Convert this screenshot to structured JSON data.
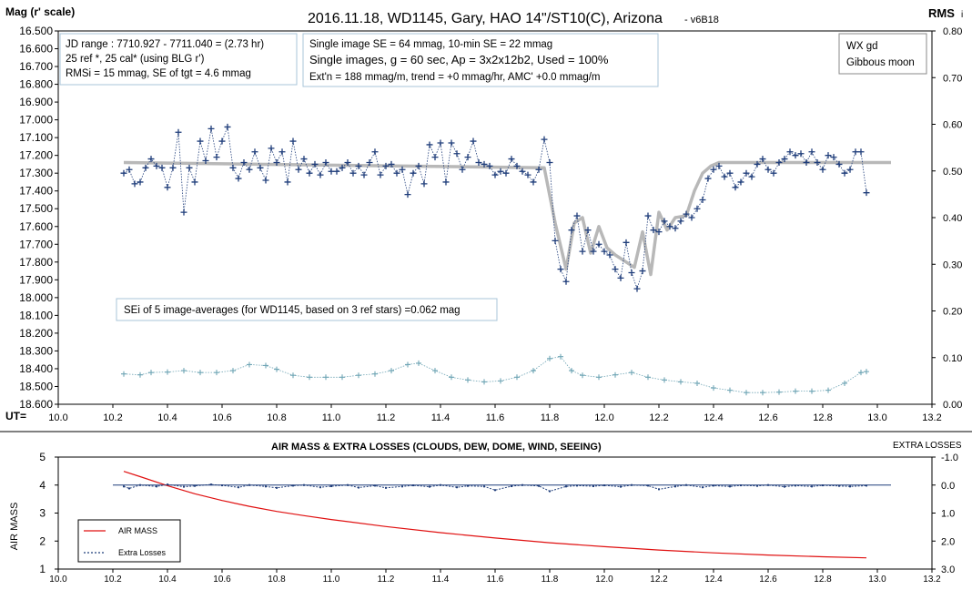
{
  "title": "2016.11.18, WD1145, Gary, HAO 14\"/ST10(C), Arizona",
  "version": " - v6B18",
  "top_chart": {
    "ylabel_left": "Mag (r' scale)",
    "ylabel_right_main": "RMS",
    "ylabel_right_sub": "i",
    "xlabel": "UT=",
    "x_ticks": [
      "10.0",
      "10.2",
      "10.4",
      "10.6",
      "10.8",
      "11.0",
      "11.2",
      "11.4",
      "11.6",
      "11.8",
      "12.0",
      "12.2",
      "12.4",
      "12.6",
      "12.8",
      "13.0",
      "13.2"
    ],
    "y_ticks": [
      "16.500",
      "16.600",
      "16.700",
      "16.800",
      "16.900",
      "17.000",
      "17.100",
      "17.200",
      "17.300",
      "17.400",
      "17.500",
      "17.600",
      "17.700",
      "17.800",
      "17.900",
      "18.000",
      "18.100",
      "18.200",
      "18.300",
      "18.400",
      "18.500",
      "18.600"
    ],
    "y2_ticks": [
      "0.80",
      "0.70",
      "0.60",
      "0.50",
      "0.40",
      "0.30",
      "0.20",
      "0.10",
      "0.00"
    ],
    "info_box_1": [
      "JD range  : 7710.927 - 7711.040  = (2.73 hr)",
      "25 ref *, 25 cal* (using BLG r')",
      "RMSi = 15 mmag, SE of tgt = 4.6 mmag"
    ],
    "info_box_2": [
      "Single image SE = 64 mmag, 10-min SE = 22 mmag",
      "Single images, g = 60 sec, Ap = 3x2x12b2, Used = 100%",
      "Ext'n = 188 mmag/m, trend = +0 mmag/hr, AMC' +0.0 mmag/m"
    ],
    "info_box_3": [
      "WX gd",
      "Gibbous moon"
    ],
    "sei_box": "SEi of 5 image-averages (for WD1145, based on 3 ref stars) =0.062 mag"
  },
  "bottom_chart": {
    "title": "AIR MASS & EXTRA LOSSES (CLOUDS, DEW, DOME, WIND, SEEING)",
    "ylabel_left": "AIR MASS",
    "ylabel_right": "EXTRA LOSSES",
    "x_ticks": [
      "10.0",
      "10.2",
      "10.4",
      "10.6",
      "10.8",
      "11.0",
      "11.2",
      "11.4",
      "11.6",
      "11.8",
      "12.0",
      "12.2",
      "12.4",
      "12.6",
      "12.8",
      "13.0",
      "13.2"
    ],
    "y_ticks": [
      "5",
      "4",
      "3",
      "2",
      "1"
    ],
    "y2_ticks": [
      "-1.0",
      "0.0",
      "1.0",
      "2.0",
      "3.0"
    ],
    "legend": [
      "AIR MASS",
      "Extra Losses"
    ]
  },
  "chart_data": [
    {
      "type": "scatter",
      "title": "2016.11.18, WD1145, Gary, HAO 14\"/ST10(C), Arizona",
      "xlabel": "UT=",
      "ylabel": "Mag (r' scale)",
      "xlim": [
        10.0,
        13.2
      ],
      "ylim": [
        16.5,
        18.6
      ],
      "y_inverted": true,
      "y2lim": [
        0.0,
        0.8
      ],
      "y2label": "RMS",
      "grid": false,
      "colors": {
        "target": "#1f3d7a",
        "model": "#b8b8b8",
        "rms": "#6fa5b5"
      },
      "series": [
        {
          "name": "",
          "style": "plus-dotted",
          "x": [
            10.24,
            10.26,
            10.28,
            10.3,
            10.32,
            10.34,
            10.36,
            10.38,
            10.4,
            10.42,
            10.44,
            10.46,
            10.48,
            10.5,
            10.52,
            10.54,
            10.56,
            10.58,
            10.6,
            10.62,
            10.64,
            10.66,
            10.68,
            10.7,
            10.72,
            10.74,
            10.76,
            10.78,
            10.8,
            10.82,
            10.84,
            10.86,
            10.88,
            10.9,
            10.92,
            10.94,
            10.96,
            10.98,
            11.0,
            11.02,
            11.04,
            11.06,
            11.08,
            11.1,
            11.12,
            11.14,
            11.16,
            11.18,
            11.2,
            11.22,
            11.24,
            11.26,
            11.28,
            11.3,
            11.32,
            11.34,
            11.36,
            11.38,
            11.4,
            11.42,
            11.44,
            11.46,
            11.48,
            11.5,
            11.52,
            11.54,
            11.56,
            11.58,
            11.6,
            11.62,
            11.64,
            11.66,
            11.68,
            11.7,
            11.72,
            11.74,
            11.76,
            11.78,
            11.8,
            11.82,
            11.84,
            11.86,
            11.88,
            11.9,
            11.92,
            11.94,
            11.96,
            11.98,
            12.0,
            12.02,
            12.04,
            12.06,
            12.08,
            12.1,
            12.12,
            12.14,
            12.16,
            12.18,
            12.2,
            12.22,
            12.24,
            12.26,
            12.28,
            12.3,
            12.32,
            12.34,
            12.36,
            12.38,
            12.4,
            12.42,
            12.44,
            12.46,
            12.48,
            12.5,
            12.52,
            12.54,
            12.56,
            12.58,
            12.6,
            12.62,
            12.64,
            12.66,
            12.68,
            12.7,
            12.72,
            12.74,
            12.76,
            12.78,
            12.8,
            12.82,
            12.84,
            12.86,
            12.88,
            12.9,
            12.92,
            12.94,
            12.96
          ],
          "y": [
            17.3,
            17.28,
            17.36,
            17.35,
            17.27,
            17.22,
            17.26,
            17.27,
            17.38,
            17.27,
            17.07,
            17.52,
            17.27,
            17.35,
            17.12,
            17.23,
            17.05,
            17.21,
            17.12,
            17.04,
            17.27,
            17.33,
            17.24,
            17.28,
            17.18,
            17.27,
            17.34,
            17.16,
            17.24,
            17.18,
            17.35,
            17.12,
            17.28,
            17.22,
            17.3,
            17.25,
            17.31,
            17.24,
            17.29,
            17.29,
            17.27,
            17.24,
            17.3,
            17.26,
            17.31,
            17.24,
            17.18,
            17.31,
            17.26,
            17.25,
            17.3,
            17.28,
            17.42,
            17.3,
            17.26,
            17.36,
            17.14,
            17.21,
            17.13,
            17.35,
            17.13,
            17.19,
            17.28,
            17.21,
            17.12,
            17.24,
            17.25,
            17.26,
            17.31,
            17.29,
            17.3,
            17.22,
            17.26,
            17.29,
            17.31,
            17.35,
            17.28,
            17.11,
            17.24,
            17.68,
            17.84,
            17.91,
            17.62,
            17.54,
            17.74,
            17.62,
            17.74,
            17.7,
            17.74,
            17.76,
            17.84,
            17.89,
            17.69,
            17.86,
            17.95,
            17.85,
            17.54,
            17.62,
            17.63,
            17.57,
            17.6,
            17.61,
            17.57,
            17.53,
            17.55,
            17.5,
            17.45,
            17.33,
            17.28,
            17.26,
            17.32,
            17.3,
            17.38,
            17.35,
            17.3,
            17.32,
            17.25,
            17.22,
            17.28,
            17.3,
            17.24,
            17.22,
            17.18,
            17.2,
            17.19,
            17.24,
            17.18,
            17.24,
            17.28,
            17.2,
            17.21,
            17.25,
            17.3,
            17.28,
            17.18,
            17.18,
            17.41
          ]
        },
        {
          "name": "",
          "style": "model-line",
          "x": [
            10.24,
            11.78,
            11.82,
            11.86,
            11.89,
            11.92,
            11.95,
            11.98,
            12.01,
            12.04,
            12.08,
            12.11,
            12.14,
            12.17,
            12.2,
            12.23,
            12.26,
            12.3,
            12.33,
            12.36,
            12.39,
            12.42,
            12.46,
            12.5,
            13.05
          ],
          "y": [
            17.24,
            17.27,
            17.58,
            17.84,
            17.58,
            17.55,
            17.75,
            17.6,
            17.72,
            17.76,
            17.8,
            17.83,
            17.63,
            17.87,
            17.52,
            17.62,
            17.55,
            17.54,
            17.4,
            17.3,
            17.26,
            17.24,
            17.24,
            17.24,
            17.24
          ]
        },
        {
          "name": "",
          "axis": "y2",
          "style": "plus",
          "x": [
            10.24,
            10.3,
            10.34,
            10.4,
            10.46,
            10.52,
            10.58,
            10.64,
            10.7,
            10.76,
            10.8,
            10.86,
            10.92,
            10.98,
            11.04,
            11.1,
            11.16,
            11.22,
            11.28,
            11.32,
            11.38,
            11.44,
            11.5,
            11.56,
            11.62,
            11.68,
            11.74,
            11.8,
            11.84,
            11.88,
            11.92,
            11.98,
            12.04,
            12.1,
            12.16,
            12.22,
            12.28,
            12.34,
            12.4,
            12.46,
            12.52,
            12.58,
            12.64,
            12.7,
            12.76,
            12.82,
            12.88,
            12.94,
            12.96
          ],
          "y": [
            0.065,
            0.063,
            0.068,
            0.069,
            0.072,
            0.068,
            0.068,
            0.072,
            0.085,
            0.083,
            0.075,
            0.062,
            0.058,
            0.058,
            0.058,
            0.062,
            0.065,
            0.072,
            0.085,
            0.088,
            0.072,
            0.058,
            0.052,
            0.048,
            0.05,
            0.058,
            0.072,
            0.098,
            0.102,
            0.072,
            0.062,
            0.058,
            0.063,
            0.068,
            0.058,
            0.052,
            0.048,
            0.045,
            0.035,
            0.03,
            0.025,
            0.025,
            0.026,
            0.028,
            0.028,
            0.03,
            0.045,
            0.068,
            0.07
          ]
        }
      ]
    },
    {
      "type": "line",
      "title": "AIR MASS & EXTRA LOSSES (CLOUDS, DEW, DOME, WIND, SEEING)",
      "xlabel": "",
      "ylabel": "AIR MASS",
      "xlim": [
        10.0,
        13.2
      ],
      "ylim": [
        1,
        5
      ],
      "y2lim": [
        -1.0,
        3.0
      ],
      "y2_inverted": true,
      "y2label": "EXTRA LOSSES",
      "legend_position": "bottom-left",
      "colors": {
        "airmass": "#e01010",
        "losses": "#1f3d7a"
      },
      "series": [
        {
          "name": "AIR MASS",
          "x": [
            10.24,
            10.3,
            10.4,
            10.5,
            10.6,
            10.7,
            10.8,
            10.9,
            11.0,
            11.2,
            11.4,
            11.6,
            11.8,
            12.0,
            12.2,
            12.4,
            12.6,
            12.8,
            12.96
          ],
          "y": [
            4.49,
            4.3,
            3.98,
            3.69,
            3.45,
            3.24,
            3.06,
            2.91,
            2.77,
            2.52,
            2.3,
            2.11,
            1.94,
            1.8,
            1.68,
            1.58,
            1.5,
            1.44,
            1.4
          ]
        },
        {
          "name": "Extra Losses",
          "axis": "y2",
          "x": [
            10.24,
            10.26,
            10.3,
            10.36,
            10.4,
            10.46,
            10.5,
            10.56,
            10.6,
            10.66,
            10.7,
            10.76,
            10.8,
            10.86,
            10.9,
            10.96,
            11.0,
            11.06,
            11.1,
            11.16,
            11.2,
            11.26,
            11.3,
            11.36,
            11.4,
            11.46,
            11.5,
            11.56,
            11.6,
            11.66,
            11.7,
            11.76,
            11.8,
            11.86,
            11.9,
            11.96,
            12.0,
            12.06,
            12.1,
            12.16,
            12.2,
            12.26,
            12.3,
            12.36,
            12.4,
            12.46,
            12.5,
            12.56,
            12.6,
            12.66,
            12.7,
            12.76,
            12.8,
            12.86,
            12.9,
            12.96
          ],
          "y": [
            0.05,
            0.12,
            0.0,
            0.05,
            -0.02,
            0.06,
            0.03,
            -0.02,
            0.01,
            0.08,
            0.0,
            0.05,
            0.1,
            0.02,
            0.0,
            0.08,
            0.04,
            0.0,
            0.09,
            0.02,
            0.1,
            0.05,
            0.01,
            0.06,
            0.0,
            0.08,
            0.03,
            0.05,
            0.18,
            0.04,
            0.0,
            0.03,
            0.22,
            0.05,
            0.02,
            0.04,
            0.01,
            0.06,
            0.0,
            0.02,
            0.15,
            0.05,
            0.0,
            0.08,
            0.02,
            0.05,
            0.01,
            0.03,
            0.0,
            0.06,
            0.02,
            0.05,
            0.01,
            0.03,
            0.05,
            0.02
          ]
        }
      ]
    }
  ]
}
